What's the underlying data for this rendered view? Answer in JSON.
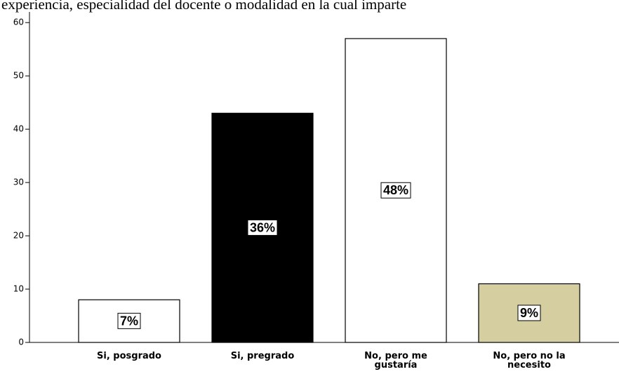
{
  "chart_data": {
    "type": "bar",
    "title": "experiencia, especialidad del docente o modalidad en la cual imparte",
    "categories": [
      "Si, posgrado",
      "Si, pregrado",
      "No, pero me gustaría",
      "No, pero no la necesito"
    ],
    "values": [
      8,
      43,
      57,
      11
    ],
    "colors": [
      "#ffffff",
      "#000000",
      "#ffffff",
      "#d4cea0"
    ],
    "bar_labels": [
      "7%",
      "36%",
      "48%",
      "9%"
    ],
    "ylim": [
      0,
      62
    ],
    "yticks": [
      0,
      10,
      20,
      30,
      40,
      50,
      60
    ]
  }
}
